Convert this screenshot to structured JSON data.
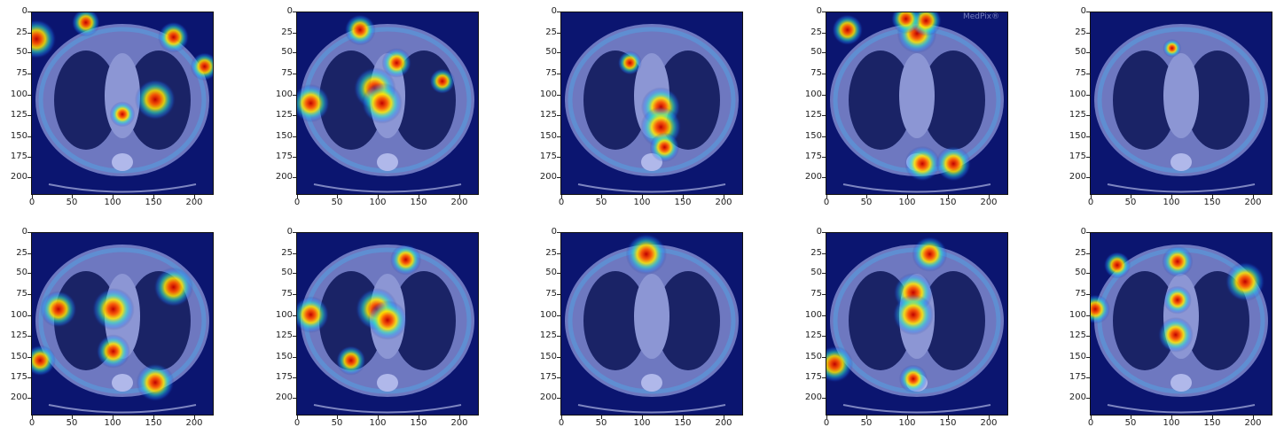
{
  "figure": {
    "axis_ticks": [
      "0",
      "25",
      "50",
      "75",
      "100",
      "125",
      "150",
      "175",
      "200"
    ],
    "x_ticks": [
      "0",
      "50",
      "100",
      "150",
      "200"
    ],
    "panels": [
      {
        "row": 0,
        "col": 0,
        "hot": [
          [
            0.03,
            0.15,
            0.9
          ],
          [
            0.68,
            0.48,
            0.95
          ],
          [
            0.78,
            0.14,
            0.6
          ],
          [
            0.3,
            0.06,
            0.5
          ],
          [
            0.5,
            0.56,
            0.4
          ],
          [
            0.95,
            0.3,
            0.5
          ]
        ]
      },
      {
        "row": 0,
        "col": 1,
        "hot": [
          [
            0.43,
            0.42,
            1.0
          ],
          [
            0.47,
            0.5,
            0.95
          ],
          [
            0.08,
            0.5,
            0.85
          ],
          [
            0.35,
            0.1,
            0.6
          ],
          [
            0.8,
            0.38,
            0.4
          ],
          [
            0.55,
            0.28,
            0.55
          ]
        ]
      },
      {
        "row": 0,
        "col": 2,
        "hot": [
          [
            0.55,
            0.52,
            0.9
          ],
          [
            0.55,
            0.63,
            0.95
          ],
          [
            0.38,
            0.28,
            0.35
          ],
          [
            0.57,
            0.74,
            0.55
          ]
        ]
      },
      {
        "row": 0,
        "col": 3,
        "hot": [
          [
            0.5,
            0.12,
            0.9
          ],
          [
            0.55,
            0.05,
            0.6
          ],
          [
            0.44,
            0.04,
            0.55
          ],
          [
            0.53,
            0.83,
            0.75
          ],
          [
            0.7,
            0.83,
            0.75
          ],
          [
            0.12,
            0.1,
            0.6
          ]
        ]
      },
      {
        "row": 0,
        "col": 4,
        "hot": [
          [
            0.45,
            0.2,
            0.15
          ]
        ]
      },
      {
        "row": 1,
        "col": 0,
        "hot": [
          [
            0.45,
            0.42,
            1.0
          ],
          [
            0.78,
            0.3,
            0.9
          ],
          [
            0.15,
            0.42,
            0.8
          ],
          [
            0.68,
            0.82,
            0.85
          ],
          [
            0.45,
            0.65,
            0.7
          ],
          [
            0.05,
            0.7,
            0.6
          ]
        ]
      },
      {
        "row": 1,
        "col": 1,
        "hot": [
          [
            0.44,
            0.42,
            1.0
          ],
          [
            0.5,
            0.48,
            0.9
          ],
          [
            0.08,
            0.45,
            0.8
          ],
          [
            0.6,
            0.15,
            0.6
          ],
          [
            0.3,
            0.7,
            0.55
          ]
        ]
      },
      {
        "row": 1,
        "col": 2,
        "hot": [
          [
            0.47,
            0.12,
            0.95
          ]
        ]
      },
      {
        "row": 1,
        "col": 3,
        "hot": [
          [
            0.48,
            0.33,
            0.9
          ],
          [
            0.48,
            0.45,
            0.95
          ],
          [
            0.57,
            0.12,
            0.75
          ],
          [
            0.05,
            0.72,
            0.8
          ],
          [
            0.48,
            0.8,
            0.5
          ]
        ]
      },
      {
        "row": 1,
        "col": 4,
        "hot": [
          [
            0.48,
            0.16,
            0.6
          ],
          [
            0.85,
            0.27,
            0.9
          ],
          [
            0.47,
            0.56,
            0.75
          ],
          [
            0.48,
            0.37,
            0.5
          ],
          [
            0.03,
            0.42,
            0.55
          ],
          [
            0.15,
            0.18,
            0.45
          ]
        ]
      }
    ]
  },
  "watermark": "MedPix®"
}
